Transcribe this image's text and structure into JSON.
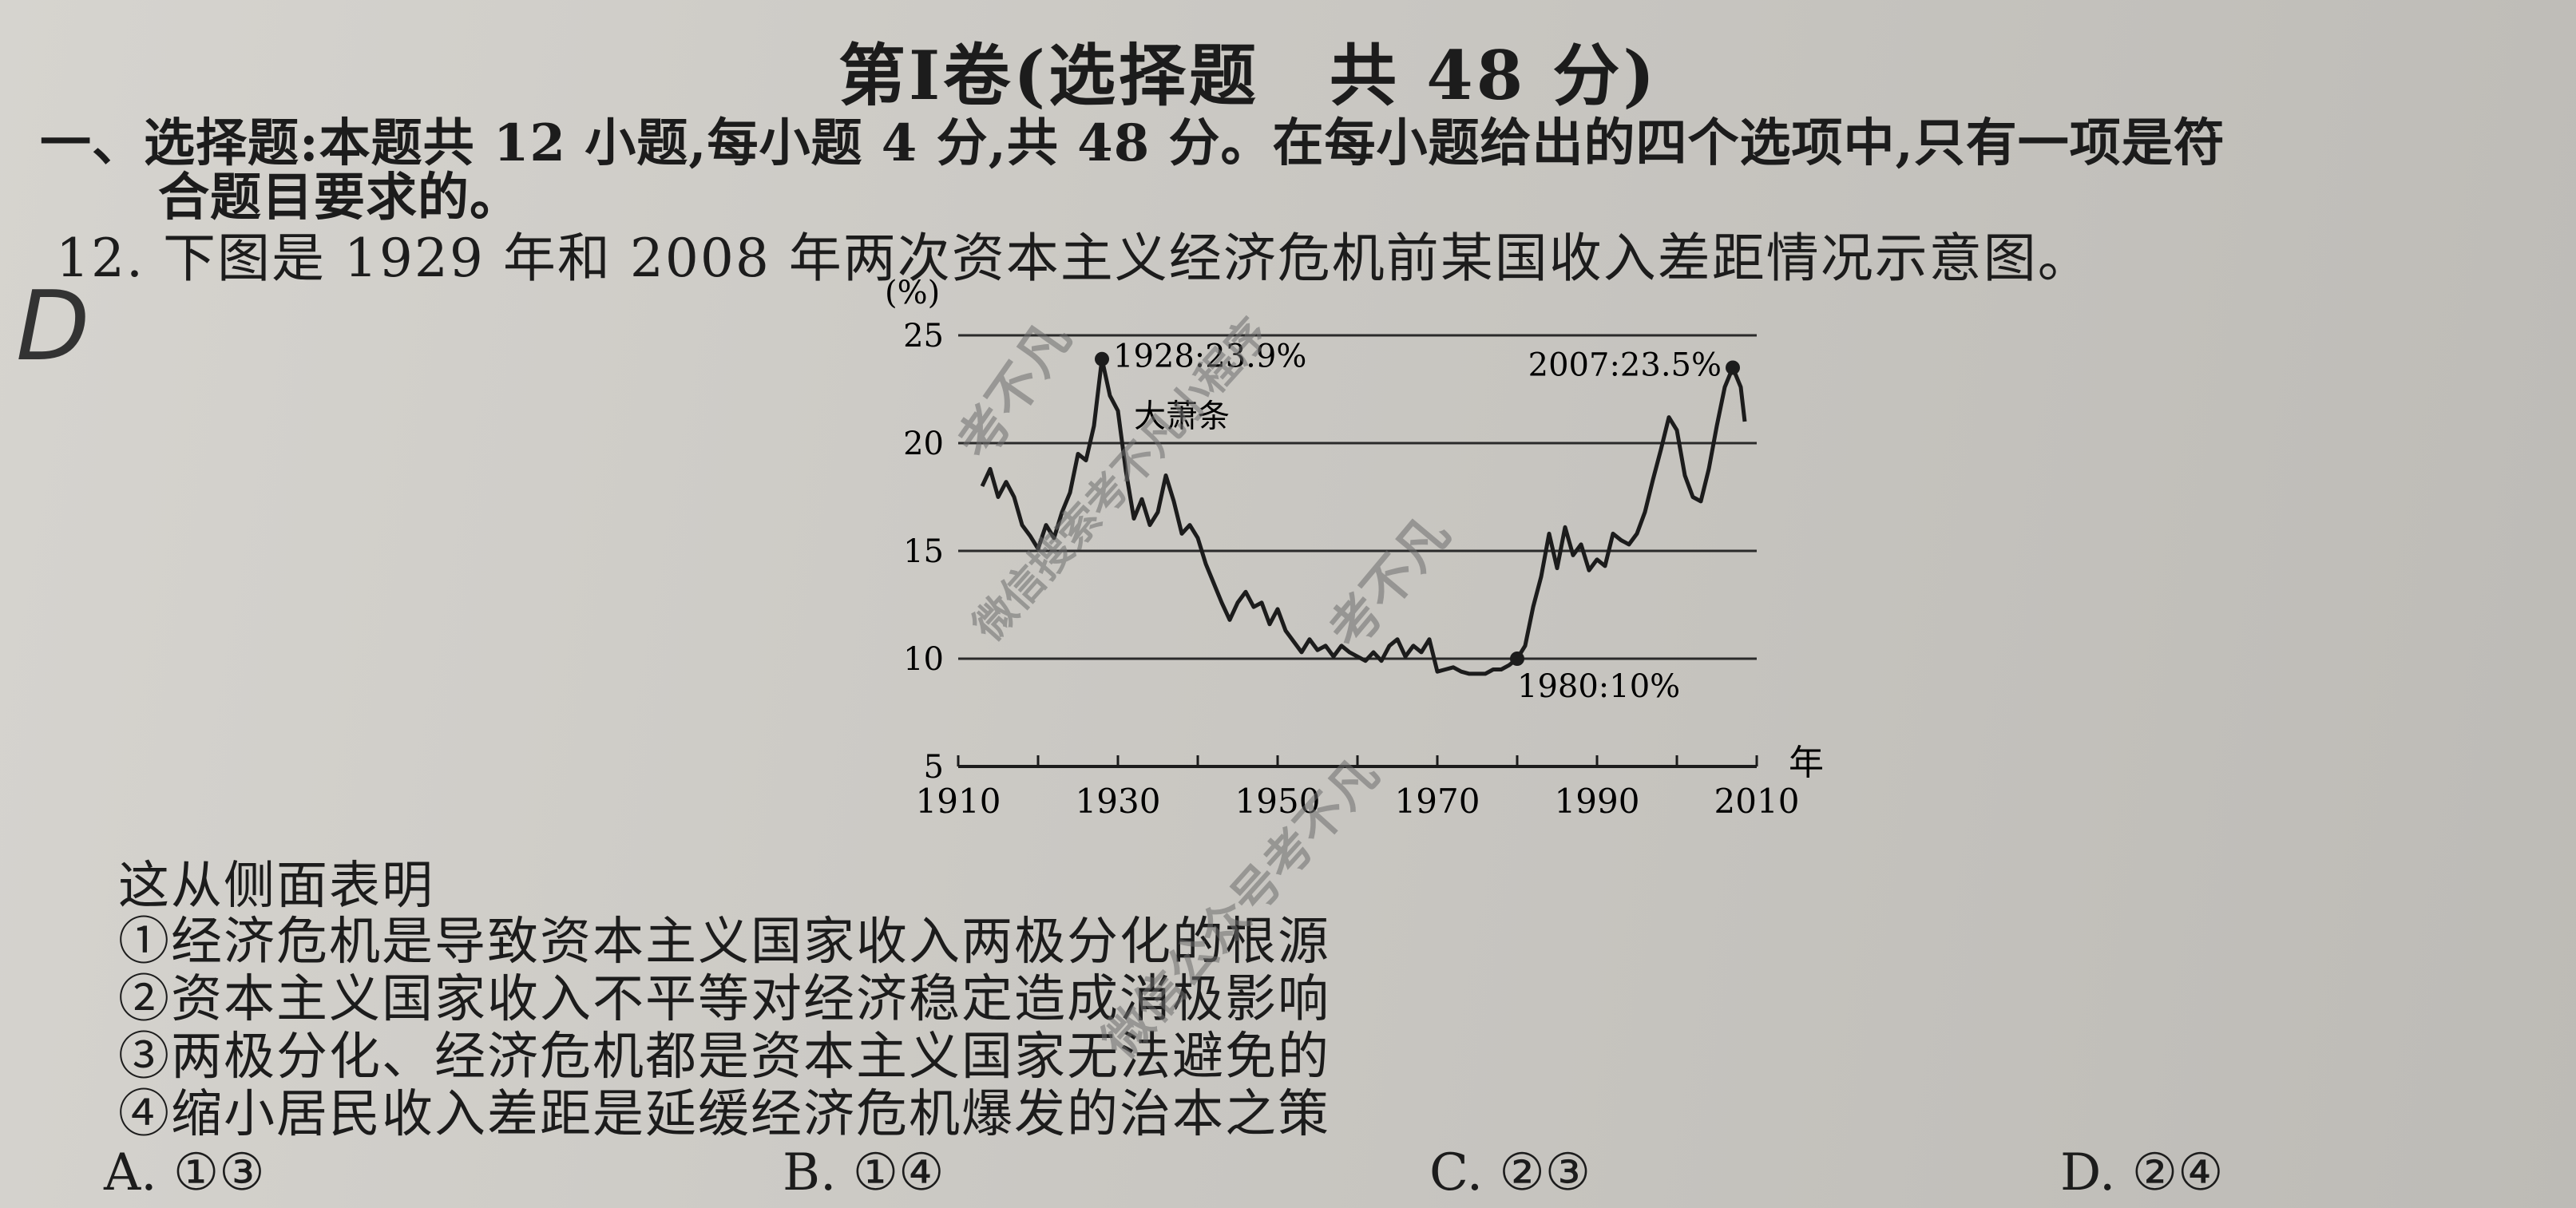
{
  "header": {
    "title": "第Ⅰ卷(选择题　共 48 分)"
  },
  "section": {
    "instruction_line1": "一、选择题:本题共 12 小题,每小题 4 分,共 48 分。在每小题给出的四个选项中,只有一项是符",
    "instruction_line2": "合题目要求的。"
  },
  "question": {
    "number_and_text": "12. 下图是 1929 年和 2008 年两次资本主义经济危机前某国收入差距情况示意图。",
    "stem": "这从侧面表明",
    "statements": [
      "①经济危机是导致资本主义国家收入两极分化的根源",
      "②资本主义国家收入不平等对经济稳定造成消极影响",
      "③两极分化、经济危机都是资本主义国家无法避免的",
      "④缩小居民收入差距是延缓经济危机爆发的治本之策"
    ],
    "choices": [
      "A. ①③",
      "B. ①④",
      "C. ②③",
      "D. ②④"
    ],
    "handwritten_mark": "D"
  },
  "watermarks": [
    "考不凡",
    "微信搜索考不凡小程序",
    "考不凡",
    "微信公众号考不凡"
  ],
  "chart_data": {
    "type": "line",
    "title": "",
    "xlabel": "年",
    "ylabel": "(%)",
    "xlim": [
      1910,
      2010
    ],
    "ylim": [
      5,
      25
    ],
    "x_ticks": [
      "1910",
      "1930",
      "1950",
      "1970",
      "1990",
      "2010"
    ],
    "y_ticks": [
      "5",
      "10",
      "15",
      "20",
      "25"
    ],
    "grid": "horizontal",
    "annotations": [
      {
        "x": 1928,
        "y": 23.9,
        "label": "1928:23.9%"
      },
      {
        "x": 1929,
        "y": 21.5,
        "label": "大萧条"
      },
      {
        "x": 2007,
        "y": 23.5,
        "label": "2007:23.5%"
      },
      {
        "x": 1980,
        "y": 10,
        "label": "1980:10%"
      }
    ],
    "series": [
      {
        "values": [
          [
            1913,
            18
          ],
          [
            1914,
            18.8
          ],
          [
            1915,
            17.5
          ],
          [
            1916,
            18.2
          ],
          [
            1917,
            17.5
          ],
          [
            1918,
            16.2
          ],
          [
            1919,
            15.7
          ],
          [
            1920,
            15.1
          ],
          [
            1921,
            16.2
          ],
          [
            1922,
            15.6
          ],
          [
            1923,
            16.8
          ],
          [
            1924,
            17.7
          ],
          [
            1925,
            19.5
          ],
          [
            1926,
            19.2
          ],
          [
            1927,
            20.8
          ],
          [
            1928,
            23.9
          ],
          [
            1929,
            22.2
          ],
          [
            1930,
            21.5
          ],
          [
            1931,
            18.7
          ],
          [
            1932,
            16.5
          ],
          [
            1933,
            17.4
          ],
          [
            1934,
            16.2
          ],
          [
            1935,
            16.8
          ],
          [
            1936,
            18.5
          ],
          [
            1937,
            17.3
          ],
          [
            1938,
            15.8
          ],
          [
            1939,
            16.2
          ],
          [
            1940,
            15.6
          ],
          [
            1941,
            14.4
          ],
          [
            1942,
            13.5
          ],
          [
            1943,
            12.6
          ],
          [
            1944,
            11.8
          ],
          [
            1945,
            12.6
          ],
          [
            1946,
            13.1
          ],
          [
            1947,
            12.4
          ],
          [
            1948,
            12.6
          ],
          [
            1949,
            11.6
          ],
          [
            1950,
            12.3
          ],
          [
            1951,
            11.3
          ],
          [
            1952,
            10.8
          ],
          [
            1953,
            10.3
          ],
          [
            1954,
            10.9
          ],
          [
            1955,
            10.4
          ],
          [
            1956,
            10.6
          ],
          [
            1957,
            10.1
          ],
          [
            1958,
            10.6
          ],
          [
            1959,
            10.3
          ],
          [
            1960,
            10.1
          ],
          [
            1961,
            9.9
          ],
          [
            1962,
            10.3
          ],
          [
            1963,
            9.9
          ],
          [
            1964,
            10.6
          ],
          [
            1965,
            10.9
          ],
          [
            1966,
            10.1
          ],
          [
            1967,
            10.6
          ],
          [
            1968,
            10.3
          ],
          [
            1969,
            10.9
          ],
          [
            1970,
            9.4
          ],
          [
            1971,
            9.5
          ],
          [
            1972,
            9.6
          ],
          [
            1973,
            9.4
          ],
          [
            1974,
            9.3
          ],
          [
            1975,
            9.3
          ],
          [
            1976,
            9.3
          ],
          [
            1977,
            9.5
          ],
          [
            1978,
            9.5
          ],
          [
            1979,
            9.7
          ],
          [
            1980,
            10
          ],
          [
            1981,
            10.6
          ],
          [
            1982,
            12.4
          ],
          [
            1983,
            13.8
          ],
          [
            1984,
            15.8
          ],
          [
            1985,
            14.2
          ],
          [
            1986,
            16.1
          ],
          [
            1987,
            14.8
          ],
          [
            1988,
            15.3
          ],
          [
            1989,
            14.1
          ],
          [
            1990,
            14.6
          ],
          [
            1991,
            14.3
          ],
          [
            1992,
            15.8
          ],
          [
            1993,
            15.5
          ],
          [
            1994,
            15.3
          ],
          [
            1995,
            15.8
          ],
          [
            1996,
            16.8
          ],
          [
            1997,
            18.3
          ],
          [
            1998,
            19.7
          ],
          [
            1999,
            21.2
          ],
          [
            2000,
            20.6
          ],
          [
            2001,
            18.5
          ],
          [
            2002,
            17.5
          ],
          [
            2003,
            17.3
          ],
          [
            2004,
            18.8
          ],
          [
            2005,
            20.8
          ],
          [
            2006,
            22.6
          ],
          [
            2007,
            23.5
          ],
          [
            2008,
            22.6
          ],
          [
            2008.5,
            21
          ]
        ]
      }
    ]
  }
}
